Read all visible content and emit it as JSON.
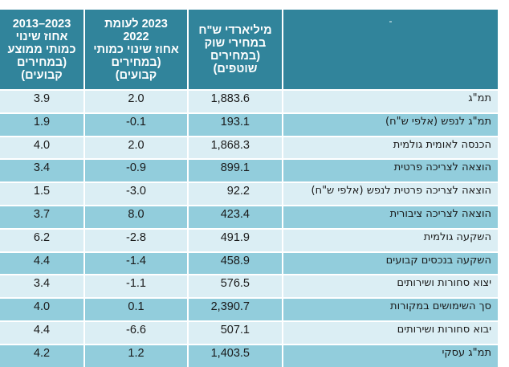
{
  "table": {
    "headers": {
      "avg_change": [
        "2023–2013",
        "אחוז שינוי",
        "כמותי ממוצע",
        "(במחירים",
        "קבועים)"
      ],
      "change_2023": [
        "2023 לעומת",
        "2022",
        "אחוז שינוי כמותי",
        "(במחירים",
        "קבועים)"
      ],
      "billions": [
        "מיליארדי ש\"ח",
        "במחירי שוק",
        "(במחירים",
        "שוטפים)"
      ],
      "label": "-"
    },
    "rows": [
      {
        "label": "תמ\"ג",
        "billions": "1,883.6",
        "change_2023": "2.0",
        "avg_change": "3.9"
      },
      {
        "label": "תמ\"ג לנפש (אלפי ש\"ח)",
        "billions": "193.1",
        "change_2023": "-0.1",
        "avg_change": "1.9"
      },
      {
        "label": "הכנסה לאומית גולמית",
        "billions": "1,868.3",
        "change_2023": "2.0",
        "avg_change": "4.0"
      },
      {
        "label": "הוצאה לצריכה פרטית",
        "billions": "899.1",
        "change_2023": "-0.9",
        "avg_change": "3.4"
      },
      {
        "label": "הוצאה לצריכה פרטית לנפש (אלפי ש\"ח)",
        "billions": "92.2",
        "change_2023": "-3.0",
        "avg_change": "1.5"
      },
      {
        "label": "הוצאה לצריכה ציבורית",
        "billions": "423.4",
        "change_2023": "8.0",
        "avg_change": "3.7"
      },
      {
        "label": "השקעה גולמית",
        "billions": "491.9",
        "change_2023": "-2.8",
        "avg_change": "6.2"
      },
      {
        "label": "השקעה בנכסים קבועים",
        "billions": "458.9",
        "change_2023": "-1.4",
        "avg_change": "4.4"
      },
      {
        "label": "יצוא סחורות ושירותים",
        "billions": "576.5",
        "change_2023": "-1.1",
        "avg_change": "3.4"
      },
      {
        "label": "סך השימושים במקורות",
        "billions": "2,390.7",
        "change_2023": "0.1",
        "avg_change": "4.0"
      },
      {
        "label": "יבוא סחורות ושירותים",
        "billions": "507.1",
        "change_2023": "-6.6",
        "avg_change": "4.4"
      },
      {
        "label": "תמ\"ג עסקי",
        "billions": "1,403.5",
        "change_2023": "1.2",
        "avg_change": "4.2"
      }
    ]
  },
  "colors": {
    "header_bg": "#31849b",
    "row_light": "#dbeef4",
    "row_dark": "#92cddc"
  }
}
